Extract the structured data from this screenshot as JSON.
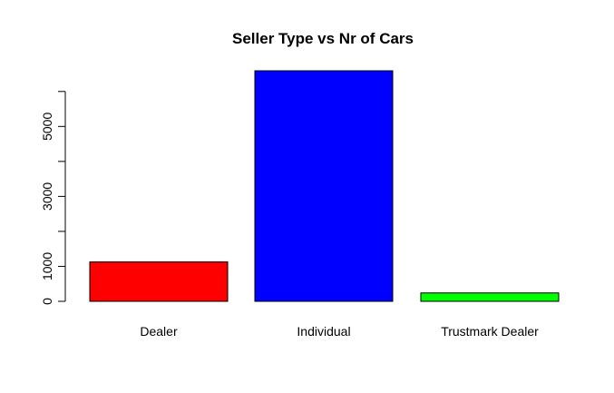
{
  "chart_data": {
    "type": "bar",
    "title": "Seller Type vs Nr of Cars",
    "xlabel": "",
    "ylabel": "",
    "categories": [
      "Dealer",
      "Individual",
      "Trustmark Dealer"
    ],
    "values": [
      1126,
      6591,
      240
    ],
    "colors": [
      "#ff0000",
      "#0000ff",
      "#00ff00"
    ],
    "bar_border_color": "#000000",
    "ylim": [
      0,
      6591
    ],
    "y_ticks": [
      0,
      1000,
      2000,
      3000,
      4000,
      5000,
      6000
    ],
    "y_tick_labels_shown": [
      "0",
      "1000",
      "3000",
      "5000"
    ],
    "grid": false,
    "legend": "none"
  }
}
